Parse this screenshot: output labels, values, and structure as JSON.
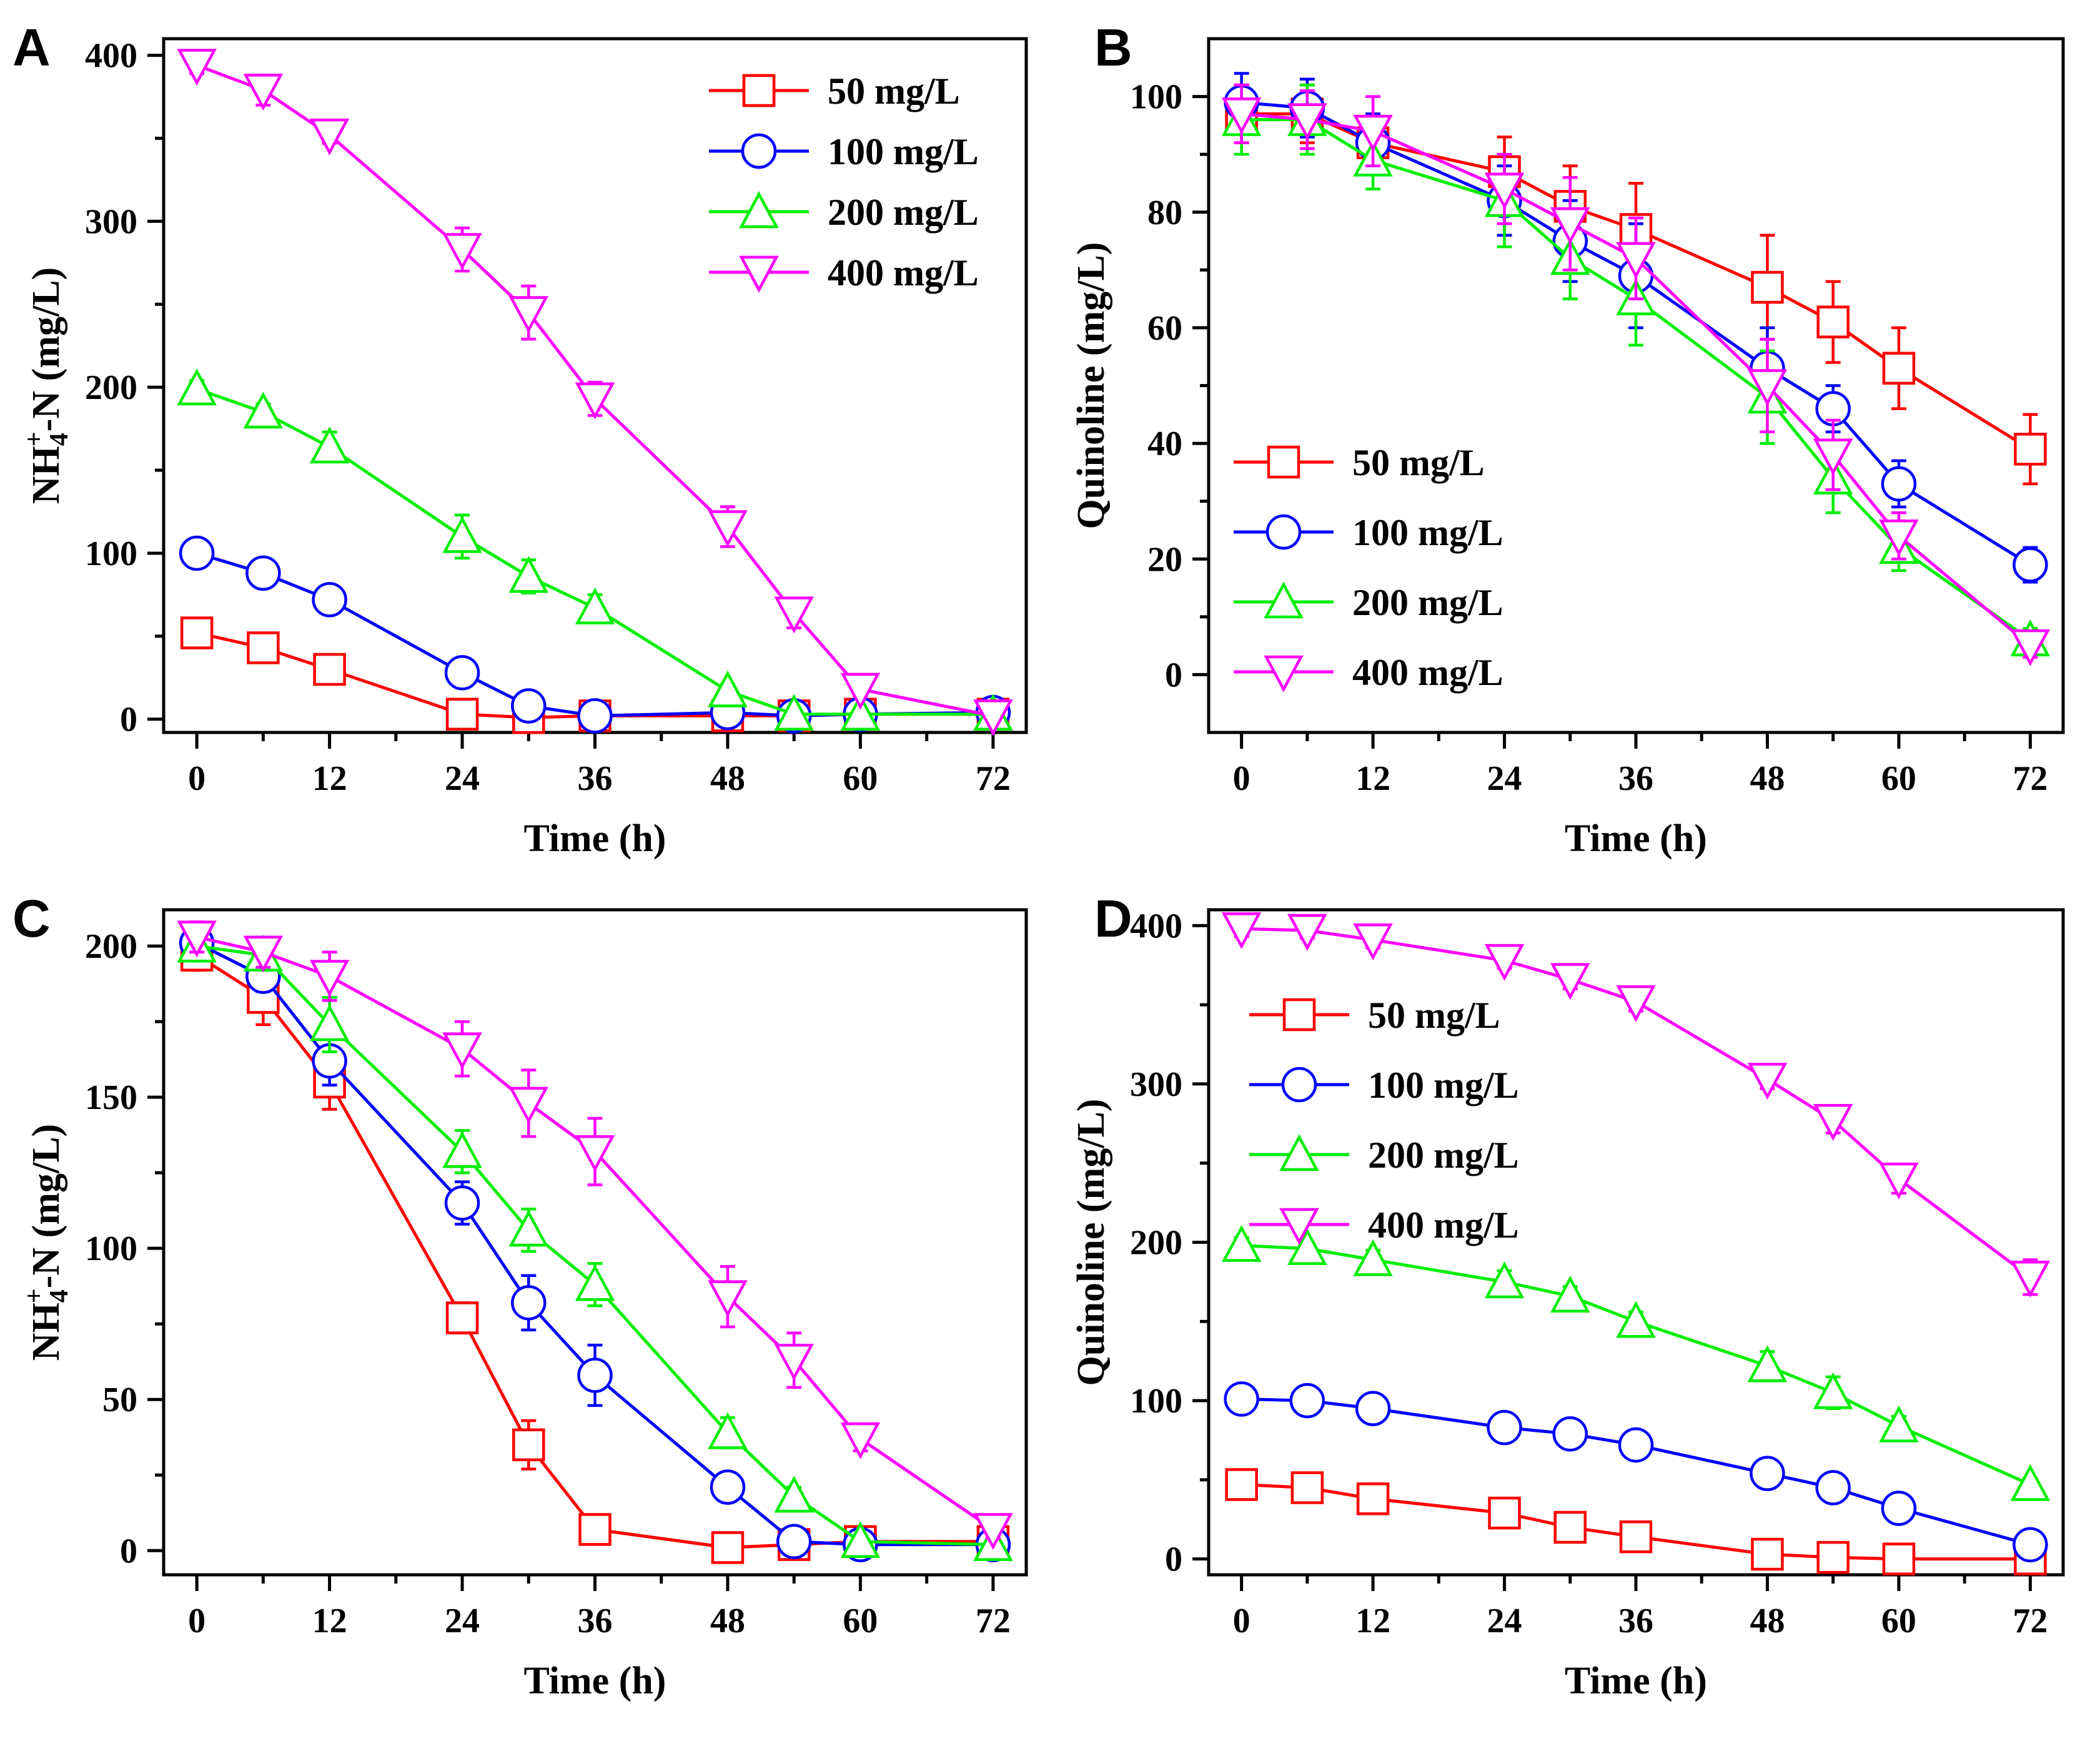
{
  "colors": {
    "50 mg/L": "#ff0000",
    "100 mg/L": "#0000ff",
    "200 mg/L": "#00ee00",
    "400 mg/L": "#ff00ff"
  },
  "markers": {
    "50 mg/L": "square",
    "100 mg/L": "circle",
    "200 mg/L": "triangle-up",
    "400 mg/L": "triangle-down"
  },
  "chart_data": [
    {
      "panel": "A",
      "type": "line",
      "xlabel": "Time (h)",
      "ylabel": "NH4+-N (mg/L)",
      "ylabel_parts": {
        "base": "NH",
        "sub": "4",
        "sup": "+",
        "rest": "-N (mg/L)"
      },
      "xlim": [
        -3,
        75
      ],
      "ylim": [
        -8,
        410
      ],
      "xticks": [
        0,
        12,
        24,
        36,
        48,
        60,
        72
      ],
      "yticks": [
        0,
        100,
        200,
        300,
        400
      ],
      "legend": "top-right",
      "x": [
        0,
        6,
        12,
        24,
        30,
        36,
        48,
        54,
        60,
        72
      ],
      "series": [
        {
          "name": "50 mg/L",
          "values": [
            52,
            43,
            30,
            3,
            1,
            2,
            2,
            2,
            3,
            3
          ],
          "err": [
            4,
            3,
            3,
            2,
            2,
            2,
            2,
            2,
            2,
            2
          ]
        },
        {
          "name": "100 mg/L",
          "values": [
            100,
            88,
            72,
            28,
            8,
            2,
            4,
            2,
            3,
            4
          ],
          "err": [
            5,
            5,
            5,
            4,
            3,
            2,
            3,
            2,
            2,
            2
          ]
        },
        {
          "name": "200 mg/L",
          "values": [
            199,
            185,
            164,
            110,
            86,
            67,
            17,
            3,
            3,
            3
          ],
          "err": [
            5,
            5,
            9,
            13,
            10,
            8,
            4,
            2,
            2,
            2
          ]
        },
        {
          "name": "400 mg/L",
          "values": [
            394,
            379,
            352,
            283,
            245,
            193,
            116,
            64,
            18,
            2
          ],
          "err": [
            5,
            9,
            5,
            13,
            16,
            10,
            12,
            9,
            4,
            2
          ]
        }
      ]
    },
    {
      "panel": "B",
      "type": "line",
      "xlabel": "Time (h)",
      "ylabel": "Quinoline (mg/L)",
      "xlim": [
        -3,
        75
      ],
      "ylim": [
        -10,
        110
      ],
      "xticks": [
        0,
        12,
        24,
        36,
        48,
        60,
        72
      ],
      "yticks": [
        0,
        20,
        40,
        60,
        80,
        100
      ],
      "legend": "bottom-left",
      "x": [
        0,
        6,
        12,
        24,
        30,
        36,
        48,
        54,
        60,
        72
      ],
      "series": [
        {
          "name": "50 mg/L",
          "values": [
            97,
            97,
            92,
            87,
            81,
            77,
            67,
            61,
            53,
            39
          ],
          "err": [
            5,
            5,
            5,
            6,
            7,
            8,
            9,
            7,
            7,
            6
          ]
        },
        {
          "name": "100 mg/L",
          "values": [
            99,
            98,
            92,
            82,
            75,
            69,
            53,
            46,
            33,
            19
          ],
          "err": [
            5,
            5,
            5,
            6,
            7,
            9,
            7,
            4,
            4,
            3
          ]
        },
        {
          "name": "200 mg/L",
          "values": [
            96,
            96,
            89,
            82,
            72,
            65,
            48,
            34,
            22,
            6
          ],
          "err": [
            6,
            6,
            5,
            8,
            7,
            8,
            8,
            6,
            4,
            2
          ]
        },
        {
          "name": "400 mg/L",
          "values": [
            97,
            96,
            94,
            84,
            78,
            72,
            50,
            38,
            24,
            5
          ],
          "err": [
            5,
            5,
            6,
            6,
            8,
            7,
            8,
            6,
            4,
            2
          ]
        }
      ]
    },
    {
      "panel": "C",
      "type": "line",
      "xlabel": "Time (h)",
      "ylabel": "NH4+-N (mg/L)",
      "ylabel_parts": {
        "base": "NH",
        "sub": "4",
        "sup": "+",
        "rest": "-N (mg/L)"
      },
      "xlim": [
        -3,
        75
      ],
      "ylim": [
        -8,
        212
      ],
      "xticks": [
        0,
        12,
        24,
        36,
        48,
        60,
        72
      ],
      "yticks": [
        0,
        50,
        100,
        150,
        200
      ],
      "legend": "top-right",
      "x": [
        0,
        6,
        12,
        24,
        30,
        36,
        48,
        54,
        60,
        72
      ],
      "series": [
        {
          "name": "50 mg/L",
          "values": [
            197,
            183,
            155,
            77,
            35,
            7,
            1,
            2,
            3,
            3
          ],
          "err": [
            5,
            9,
            9,
            5,
            8,
            3,
            2,
            2,
            2,
            2
          ]
        },
        {
          "name": "100 mg/L",
          "values": [
            201,
            190,
            162,
            115,
            82,
            58,
            21,
            3,
            2,
            2
          ],
          "err": [
            5,
            5,
            8,
            7,
            9,
            10,
            3,
            2,
            2,
            2
          ]
        },
        {
          "name": "200 mg/L",
          "values": [
            200,
            197,
            174,
            132,
            106,
            88,
            39,
            18,
            3,
            2
          ],
          "err": [
            5,
            5,
            9,
            7,
            7,
            7,
            5,
            3,
            2,
            2
          ]
        },
        {
          "name": "400 mg/L",
          "values": [
            203,
            198,
            190,
            166,
            148,
            132,
            84,
            63,
            37,
            7
          ],
          "err": [
            5,
            5,
            8,
            9,
            11,
            11,
            10,
            9,
            4,
            3
          ]
        }
      ]
    },
    {
      "panel": "D",
      "type": "line",
      "xlabel": "Time (h)",
      "ylabel": "Quinoline (mg/L)",
      "xlim": [
        -3,
        75
      ],
      "ylim": [
        -10,
        410
      ],
      "xticks": [
        0,
        12,
        24,
        36,
        48,
        60,
        72
      ],
      "yticks": [
        0,
        100,
        200,
        300,
        400
      ],
      "legend": "top-left",
      "x": [
        0,
        6,
        12,
        24,
        30,
        36,
        48,
        54,
        60,
        72
      ],
      "series": [
        {
          "name": "50 mg/L",
          "values": [
            47,
            45,
            38,
            29,
            20,
            14,
            3,
            1,
            0,
            0
          ],
          "err": [
            4,
            4,
            4,
            4,
            4,
            4,
            3,
            2,
            2,
            2
          ]
        },
        {
          "name": "100 mg/L",
          "values": [
            101,
            100,
            95,
            83,
            79,
            72,
            54,
            45,
            32,
            9
          ],
          "err": [
            5,
            4,
            4,
            5,
            8,
            5,
            5,
            4,
            4,
            3
          ]
        },
        {
          "name": "200 mg/L",
          "values": [
            198,
            196,
            189,
            175,
            166,
            150,
            122,
            105,
            84,
            47
          ],
          "err": [
            5,
            4,
            6,
            7,
            6,
            6,
            9,
            10,
            6,
            4
          ]
        },
        {
          "name": "400 mg/L",
          "values": [
            398,
            397,
            391,
            378,
            366,
            352,
            303,
            277,
            240,
            178
          ],
          "err": [
            5,
            5,
            5,
            5,
            6,
            6,
            6,
            8,
            9,
            11
          ]
        }
      ]
    }
  ]
}
